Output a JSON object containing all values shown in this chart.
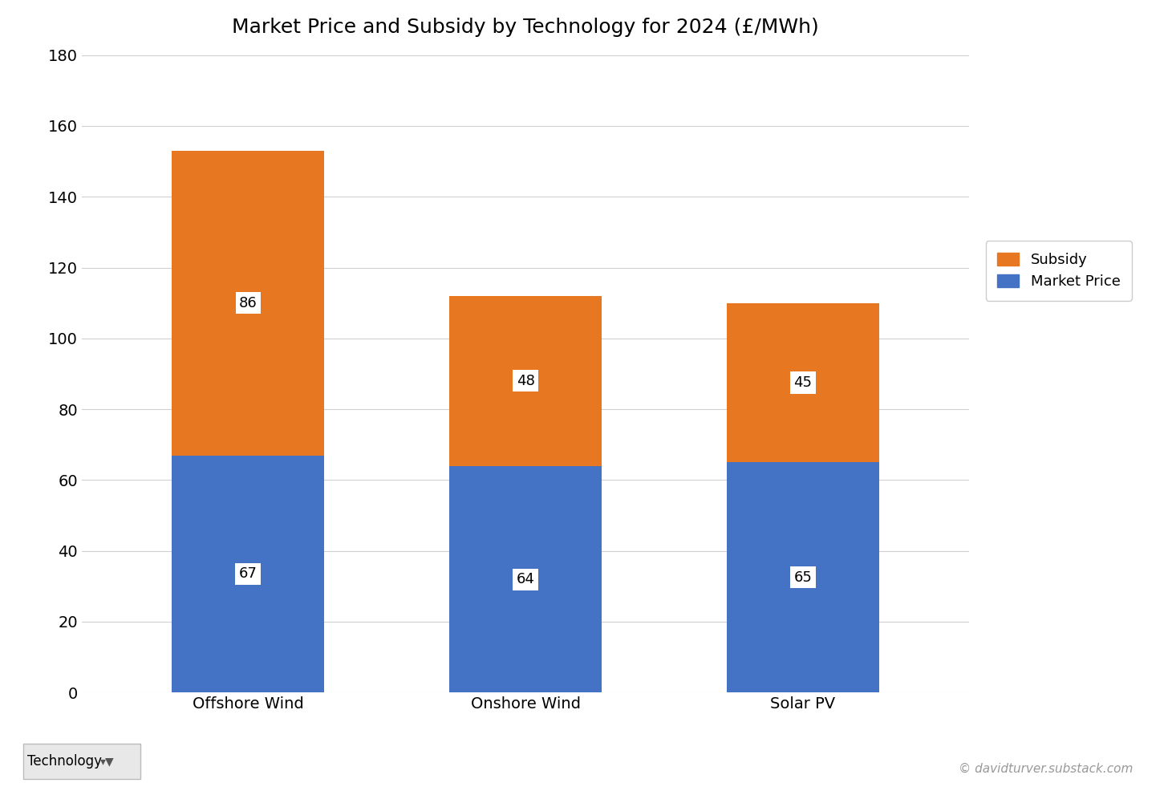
{
  "title": "Market Price and Subsidy by Technology for 2024 (£/MWh)",
  "categories": [
    "Offshore Wind",
    "Onshore Wind",
    "Solar PV"
  ],
  "market_price": [
    67,
    64,
    65
  ],
  "subsidy": [
    86,
    48,
    45
  ],
  "bar_color_market": "#4472C4",
  "bar_color_subsidy": "#E87722",
  "ylim": [
    0,
    180
  ],
  "yticks": [
    0,
    20,
    40,
    60,
    80,
    100,
    120,
    140,
    160,
    180
  ],
  "legend_labels": [
    "Subsidy",
    "Market Price"
  ],
  "legend_colors": [
    "#E87722",
    "#4472C4"
  ],
  "footer_left": "Technology",
  "footer_right": "© davidturver.substack.com",
  "background_color": "#FFFFFF",
  "grid_color": "#D0D0D0",
  "title_fontsize": 18,
  "tick_fontsize": 14,
  "legend_fontsize": 13,
  "annotation_fontsize": 13,
  "bar_width": 0.55
}
